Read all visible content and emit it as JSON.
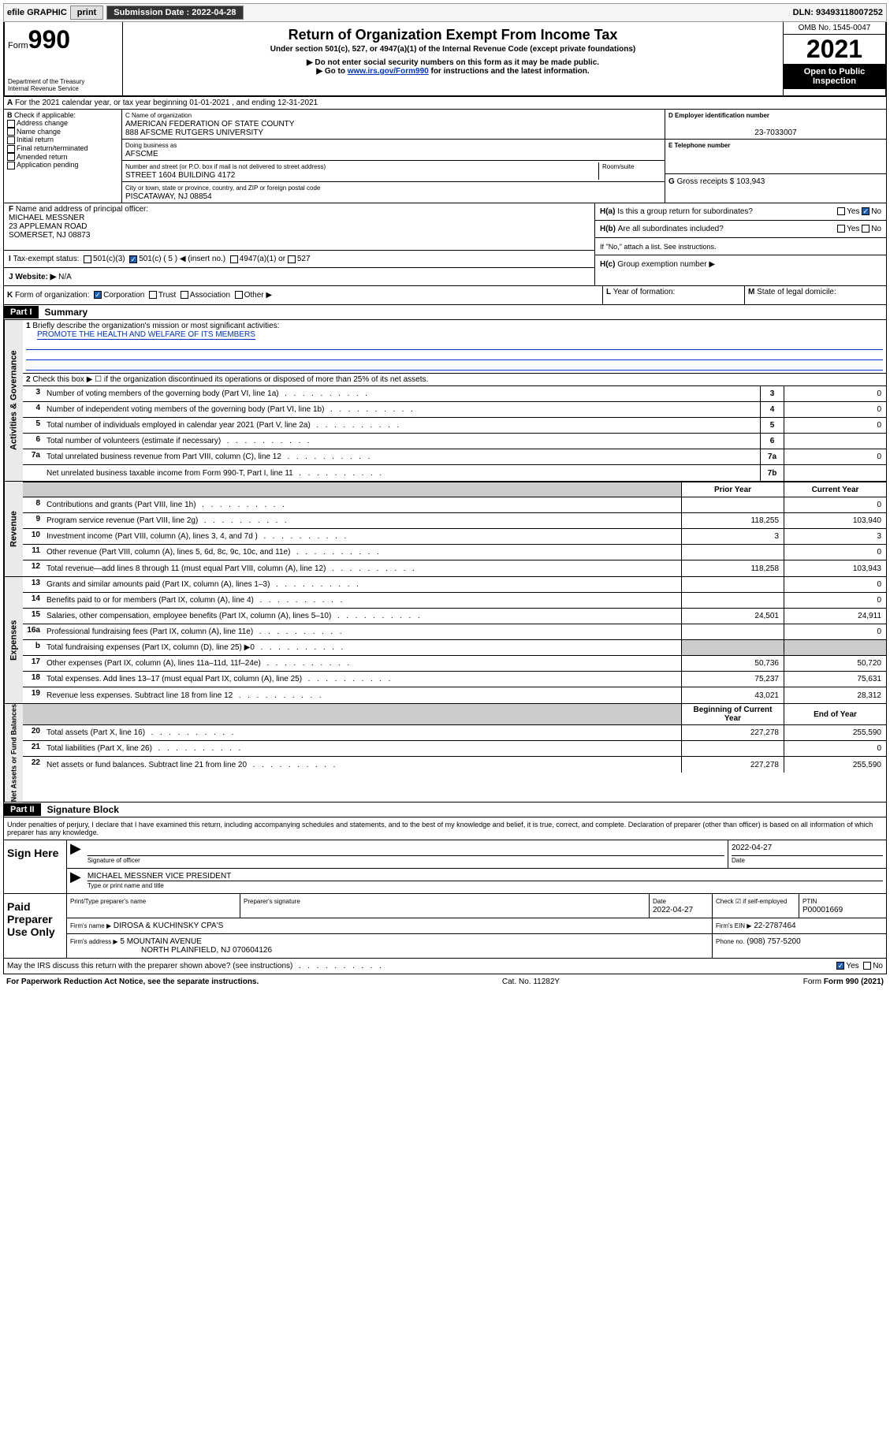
{
  "topbar": {
    "efile": "efile GRAPHIC",
    "print": "print",
    "submission_label": "Submission Date : 2022-04-28",
    "dln": "DLN: 93493118007252"
  },
  "header": {
    "form_label": "Form",
    "form_no": "990",
    "title": "Return of Organization Exempt From Income Tax",
    "subtitle1": "Under section 501(c), 527, or 4947(a)(1) of the Internal Revenue Code (except private foundations)",
    "subtitle2": "▶ Do not enter social security numbers on this form as it may be made public.",
    "subtitle3_prefix": "▶ Go to ",
    "subtitle3_link": "www.irs.gov/Form990",
    "subtitle3_suffix": " for instructions and the latest information.",
    "dept": "Department of the Treasury",
    "irs": "Internal Revenue Service",
    "omb": "OMB No. 1545-0047",
    "year": "2021",
    "open": "Open to Public Inspection"
  },
  "sec_a": {
    "a_label": "A",
    "text": "For the 2021 calendar year, or tax year beginning 01-01-2021    , and ending 12-31-2021"
  },
  "box_b": {
    "label": "B",
    "check_label": "Check if applicable:",
    "items": [
      "Address change",
      "Name change",
      "Initial return",
      "Final return/terminated",
      "Amended return",
      "Application pending"
    ]
  },
  "box_c": {
    "name_label": "C Name of organization",
    "name1": "AMERICAN FEDERATION OF STATE COUNTY",
    "name2": "888 AFSCME RUTGERS UNIVERSITY",
    "dba_label": "Doing business as",
    "dba": "AFSCME",
    "addr_label": "Number and street (or P.O. box if mail is not delivered to street address)",
    "room_label": "Room/suite",
    "addr": "STREET 1604 BUILDING 4172",
    "city_label": "City or town, state or province, country, and ZIP or foreign postal code",
    "city": "PISCATAWAY, NJ  08854"
  },
  "box_d": {
    "label": "D Employer identification number",
    "ein": "23-7033007",
    "e_label": "E Telephone number",
    "g_label": "G",
    "g_text": "Gross receipts $ 103,943"
  },
  "box_f": {
    "label": "F",
    "text": "Name and address of principal officer:",
    "line1": "MICHAEL MESSNER",
    "line2": "23 APPLEMAN ROAD",
    "line3": "SOMERSET, NJ  08873"
  },
  "box_h": {
    "ha_label": "H(a)",
    "ha_text": "Is this a group return for subordinates?",
    "hb_label": "H(b)",
    "hb_text": "Are all subordinates included?",
    "hb_note": "If \"No,\" attach a list. See instructions.",
    "hc_label": "H(c)",
    "hc_text": "Group exemption number ▶",
    "yes": "Yes",
    "no": "No"
  },
  "box_i": {
    "label": "I",
    "text": "Tax-exempt status:",
    "opt1": "501(c)(3)",
    "opt2": "501(c) ( 5 ) ◀ (insert no.)",
    "opt3": "4947(a)(1) or",
    "opt4": "527"
  },
  "box_j": {
    "label": "J",
    "text": "Website: ▶",
    "val": "N/A"
  },
  "box_k": {
    "label": "K",
    "text": "Form of organization:",
    "corp": "Corporation",
    "trust": "Trust",
    "assoc": "Association",
    "other": "Other ▶"
  },
  "box_l": {
    "label": "L",
    "text": "Year of formation:"
  },
  "box_m": {
    "label": "M",
    "text": "State of legal domicile:"
  },
  "part1": {
    "header": "Part I",
    "title": "Summary",
    "line1_label": "1",
    "line1_text": "Briefly describe the organization's mission or most significant activities:",
    "line1_val": "PROMOTE THE HEALTH AND WELFARE OF ITS MEMBERS",
    "line2_label": "2",
    "line2_text": "Check this box ▶ ☐  if the organization discontinued its operations or disposed of more than 25% of its net assets.",
    "vert_ag": "Activities & Governance",
    "vert_rev": "Revenue",
    "vert_exp": "Expenses",
    "vert_na": "Net Assets or Fund Balances",
    "prior": "Prior Year",
    "current": "Current Year",
    "begin": "Beginning of Current Year",
    "end": "End of Year",
    "rows_gov": [
      {
        "n": "3",
        "t": "Number of voting members of the governing body (Part VI, line 1a)",
        "b": "3",
        "v": "0"
      },
      {
        "n": "4",
        "t": "Number of independent voting members of the governing body (Part VI, line 1b)",
        "b": "4",
        "v": "0"
      },
      {
        "n": "5",
        "t": "Total number of individuals employed in calendar year 2021 (Part V, line 2a)",
        "b": "5",
        "v": "0"
      },
      {
        "n": "6",
        "t": "Total number of volunteers (estimate if necessary)",
        "b": "6",
        "v": ""
      },
      {
        "n": "7a",
        "t": "Total unrelated business revenue from Part VIII, column (C), line 12",
        "b": "7a",
        "v": "0"
      },
      {
        "n": "",
        "t": "Net unrelated business taxable income from Form 990-T, Part I, line 11",
        "b": "7b",
        "v": ""
      }
    ],
    "rows_rev": [
      {
        "n": "8",
        "t": "Contributions and grants (Part VIII, line 1h)",
        "p": "",
        "c": "0"
      },
      {
        "n": "9",
        "t": "Program service revenue (Part VIII, line 2g)",
        "p": "118,255",
        "c": "103,940"
      },
      {
        "n": "10",
        "t": "Investment income (Part VIII, column (A), lines 3, 4, and 7d )",
        "p": "3",
        "c": "3"
      },
      {
        "n": "11",
        "t": "Other revenue (Part VIII, column (A), lines 5, 6d, 8c, 9c, 10c, and 11e)",
        "p": "",
        "c": "0"
      },
      {
        "n": "12",
        "t": "Total revenue—add lines 8 through 11 (must equal Part VIII, column (A), line 12)",
        "p": "118,258",
        "c": "103,943"
      }
    ],
    "rows_exp": [
      {
        "n": "13",
        "t": "Grants and similar amounts paid (Part IX, column (A), lines 1–3)",
        "p": "",
        "c": "0"
      },
      {
        "n": "14",
        "t": "Benefits paid to or for members (Part IX, column (A), line 4)",
        "p": "",
        "c": "0"
      },
      {
        "n": "15",
        "t": "Salaries, other compensation, employee benefits (Part IX, column (A), lines 5–10)",
        "p": "24,501",
        "c": "24,911"
      },
      {
        "n": "16a",
        "t": "Professional fundraising fees (Part IX, column (A), line 11e)",
        "p": "",
        "c": "0"
      },
      {
        "n": "b",
        "t": "Total fundraising expenses (Part IX, column (D), line 25) ▶0",
        "p": "grey",
        "c": "grey"
      },
      {
        "n": "17",
        "t": "Other expenses (Part IX, column (A), lines 11a–11d, 11f–24e)",
        "p": "50,736",
        "c": "50,720"
      },
      {
        "n": "18",
        "t": "Total expenses. Add lines 13–17 (must equal Part IX, column (A), line 25)",
        "p": "75,237",
        "c": "75,631"
      },
      {
        "n": "19",
        "t": "Revenue less expenses. Subtract line 18 from line 12",
        "p": "43,021",
        "c": "28,312"
      }
    ],
    "rows_na": [
      {
        "n": "20",
        "t": "Total assets (Part X, line 16)",
        "p": "227,278",
        "c": "255,590"
      },
      {
        "n": "21",
        "t": "Total liabilities (Part X, line 26)",
        "p": "",
        "c": "0"
      },
      {
        "n": "22",
        "t": "Net assets or fund balances. Subtract line 21 from line 20",
        "p": "227,278",
        "c": "255,590"
      }
    ]
  },
  "part2": {
    "header": "Part II",
    "title": "Signature Block",
    "penalty": "Under penalties of perjury, I declare that I have examined this return, including accompanying schedules and statements, and to the best of my knowledge and belief, it is true, correct, and complete. Declaration of preparer (other than officer) is based on all information of which preparer has any knowledge.",
    "sign_here": "Sign Here",
    "sig_officer": "Signature of officer",
    "date_label": "Date",
    "sig_date": "2022-04-27",
    "officer_name": "MICHAEL MESSNER  VICE PRESIDENT",
    "type_name": "Type or print name and title",
    "paid_prep": "Paid Preparer Use Only",
    "prep_name_label": "Print/Type preparer's name",
    "prep_sig_label": "Preparer's signature",
    "prep_date": "2022-04-27",
    "check_if": "Check ☑ if self-employed",
    "ptin_label": "PTIN",
    "ptin": "P00001669",
    "firm_name_label": "Firm's name    ▶",
    "firm_name": "DIROSA & KUCHINSKY CPA'S",
    "firm_ein_label": "Firm's EIN ▶",
    "firm_ein": "22-2787464",
    "firm_addr_label": "Firm's address ▶",
    "firm_addr1": "5 MOUNTAIN AVENUE",
    "firm_addr2": "NORTH PLAINFIELD, NJ  070604126",
    "phone_label": "Phone no.",
    "phone": "(908) 757-5200",
    "may_irs": "May the IRS discuss this return with the preparer shown above? (see instructions)",
    "yes": "Yes",
    "no": "No"
  },
  "footer": {
    "paperwork": "For Paperwork Reduction Act Notice, see the separate instructions.",
    "cat": "Cat. No. 11282Y",
    "form": "Form 990 (2021)"
  }
}
